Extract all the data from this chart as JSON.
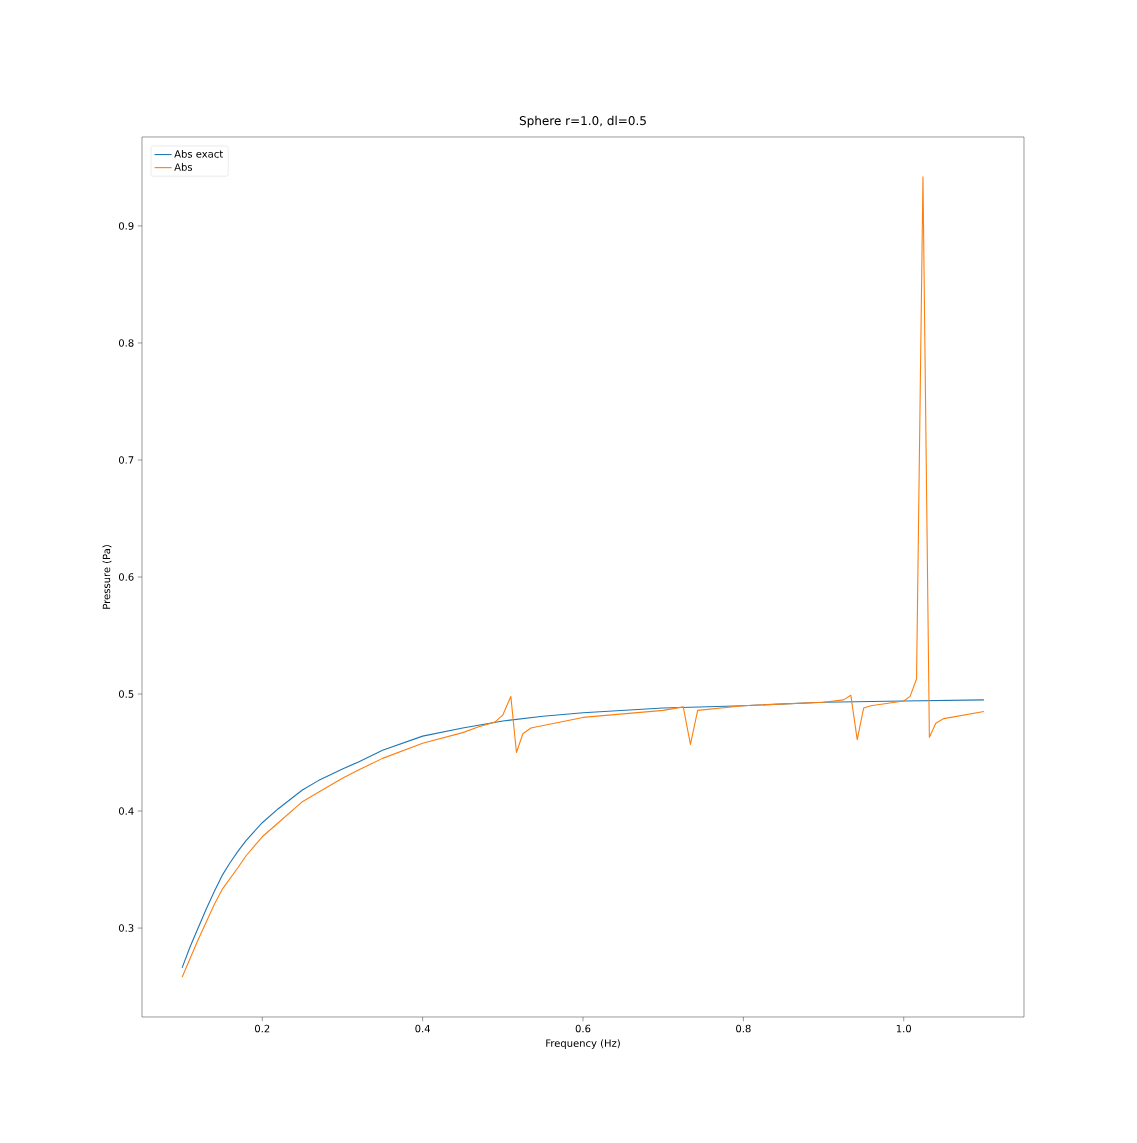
{
  "chart_data": {
    "type": "line",
    "title": "Sphere r=1.0, dl=0.5",
    "xlabel": "Frequency (Hz)",
    "ylabel": "Pressure (Pa)",
    "xlim": [
      0.05,
      1.15
    ],
    "ylim": [
      0.224,
      0.976
    ],
    "xticks": [
      0.2,
      0.4,
      0.6,
      0.8,
      {
        "value": 1.0,
        "label": "1.0"
      }
    ],
    "yticks": [
      0.3,
      0.4,
      0.5,
      0.6,
      0.7,
      0.8,
      0.9
    ],
    "legend": "top left",
    "grid": false,
    "marker": "none",
    "line_style": "solid",
    "series": [
      {
        "name": "Abs exact",
        "color": "#1f77b4",
        "x": [
          0.1,
          0.11,
          0.12,
          0.13,
          0.14,
          0.15,
          0.16,
          0.17,
          0.18,
          0.2,
          0.22,
          0.25,
          0.27,
          0.3,
          0.32,
          0.35,
          0.4,
          0.45,
          0.5,
          0.55,
          0.6,
          0.7,
          0.8,
          0.9,
          1.0,
          1.1
        ],
        "values": [
          0.266,
          0.284,
          0.3,
          0.316,
          0.331,
          0.345,
          0.356,
          0.366,
          0.375,
          0.39,
          0.402,
          0.418,
          0.426,
          0.436,
          0.442,
          0.452,
          0.464,
          0.471,
          0.477,
          0.481,
          0.484,
          0.488,
          0.49,
          0.493,
          0.494,
          0.495
        ]
      },
      {
        "name": "Abs",
        "color": "#ff7f0e",
        "x": [
          0.1,
          0.11,
          0.12,
          0.13,
          0.14,
          0.15,
          0.17,
          0.18,
          0.2,
          0.22,
          0.25,
          0.27,
          0.3,
          0.32,
          0.35,
          0.4,
          0.45,
          0.47,
          0.49,
          0.5,
          0.51,
          0.517,
          0.525,
          0.535,
          0.6,
          0.7,
          0.725,
          0.734,
          0.743,
          0.8,
          0.9,
          0.925,
          0.934,
          0.942,
          0.95,
          0.959,
          1.0,
          1.008,
          1.016,
          1.024,
          1.032,
          1.04,
          1.05,
          1.1
        ],
        "values": [
          0.258,
          0.274,
          0.29,
          0.305,
          0.32,
          0.333,
          0.352,
          0.362,
          0.378,
          0.39,
          0.408,
          0.416,
          0.428,
          0.435,
          0.445,
          0.458,
          0.467,
          0.472,
          0.476,
          0.482,
          0.498,
          0.45,
          0.466,
          0.471,
          0.48,
          0.486,
          0.489,
          0.457,
          0.486,
          0.49,
          0.493,
          0.495,
          0.499,
          0.461,
          0.488,
          0.49,
          0.494,
          0.498,
          0.513,
          0.942,
          0.463,
          0.475,
          0.479,
          0.485
        ]
      }
    ]
  }
}
